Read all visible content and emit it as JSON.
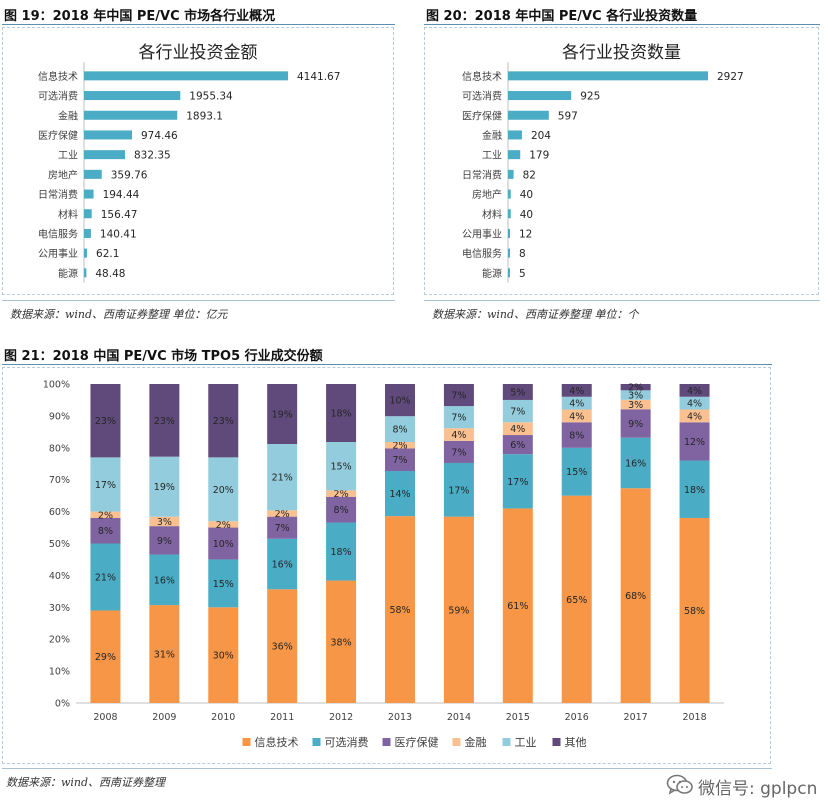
{
  "figure19": {
    "caption": "图 19：2018 年中国 PE/VC 市场各行业概况",
    "source": "数据来源：wind、西南证券整理 单位：亿元",
    "chart_data": {
      "type": "bar",
      "orientation": "horizontal",
      "title": "各行业投资金额",
      "categories": [
        "信息技术",
        "可选消费",
        "金融",
        "医疗保健",
        "工业",
        "房地产",
        "日常消费",
        "材料",
        "电信服务",
        "公用事业",
        "能源"
      ],
      "values": [
        4141.67,
        1955.34,
        1893.1,
        974.46,
        832.35,
        359.76,
        194.44,
        156.47,
        140.41,
        62.1,
        48.48
      ],
      "value_labels": [
        "4141.67",
        "1955.34",
        "1893.1",
        "974.46",
        "832.35",
        "359.76",
        "194.44",
        "156.47",
        "140.41",
        "62.1",
        "48.48"
      ],
      "color": "#4bacc6",
      "grid": false,
      "legend": "none"
    }
  },
  "figure20": {
    "caption": "图 20：2018 年中国 PE/VC 各行业投资数量",
    "source": "数据来源：wind、西南证券整理 单位：个",
    "chart_data": {
      "type": "bar",
      "orientation": "horizontal",
      "title": "各行业投资数量",
      "categories": [
        "信息技术",
        "可选消费",
        "医疗保健",
        "金融",
        "工业",
        "日常消费",
        "房地产",
        "材料",
        "公用事业",
        "电信服务",
        "能源"
      ],
      "values": [
        2927,
        925,
        597,
        204,
        179,
        82,
        40,
        40,
        12,
        8,
        5
      ],
      "value_labels": [
        "2927",
        "925",
        "597",
        "204",
        "179",
        "82",
        "40",
        "40",
        "12",
        "8",
        "5"
      ],
      "color": "#4bacc6",
      "grid": false,
      "legend": "none"
    }
  },
  "figure21": {
    "caption": "图 21：2018 中国 PE/VC 市场 TPO5 行业成交份额",
    "source": "数据来源：wind、西南证券整理",
    "chart_data": {
      "type": "bar",
      "stacked": "percent",
      "categories": [
        "2008",
        "2009",
        "2010",
        "2011",
        "2012",
        "2013",
        "2014",
        "2015",
        "2016",
        "2017",
        "2018"
      ],
      "y_ticks": [
        "0%",
        "10%",
        "20%",
        "30%",
        "40%",
        "50%",
        "60%",
        "70%",
        "80%",
        "90%",
        "100%"
      ],
      "ylim": [
        0,
        100
      ],
      "grid": false,
      "legend": "bottom",
      "series": [
        {
          "name": "信息技术",
          "color": "#f79646",
          "values": [
            29,
            31,
            30,
            36,
            38,
            58,
            59,
            61,
            65,
            68,
            58
          ],
          "labels": [
            "29%",
            "31%",
            "30%",
            "36%",
            "38%",
            "58%",
            "59%",
            "61%",
            "65%",
            "68%",
            "58%"
          ]
        },
        {
          "name": "可选消费",
          "color": "#4bacc6",
          "values": [
            21,
            16,
            15,
            16,
            18,
            14,
            17,
            17,
            15,
            16,
            18
          ],
          "labels": [
            "21%",
            "16%",
            "15%",
            "16%",
            "18%",
            "14%",
            "17%",
            "17%",
            "15%",
            "16%",
            "18%"
          ]
        },
        {
          "name": "医疗保健",
          "color": "#8064a2",
          "values": [
            8,
            9,
            10,
            7,
            8,
            7,
            7,
            6,
            8,
            9,
            12
          ],
          "labels": [
            "8%",
            "9%",
            "10%",
            "7%",
            "8%",
            "7%",
            "7%",
            "6%",
            "8%",
            "9%",
            "12%"
          ]
        },
        {
          "name": "金融",
          "color": "#fac090",
          "values": [
            2,
            3,
            2,
            2,
            2,
            2,
            4,
            4,
            4,
            3,
            4
          ],
          "labels": [
            "2%",
            "3%",
            "2%",
            "2%",
            "2%",
            "2%",
            "4%",
            "4%",
            "4%",
            "3%",
            "4%"
          ]
        },
        {
          "name": "工业",
          "color": "#93cddd",
          "values": [
            17,
            19,
            20,
            21,
            15,
            8,
            7,
            7,
            4,
            3,
            4
          ],
          "labels": [
            "17%",
            "19%",
            "20%",
            "21%",
            "15%",
            "8%",
            "7%",
            "7%",
            "4%",
            "3%",
            "4%"
          ]
        },
        {
          "name": "其他",
          "color": "#604a7b",
          "values": [
            23,
            23,
            23,
            19,
            18,
            10,
            7,
            5,
            4,
            2,
            4
          ],
          "labels": [
            "23%",
            "23%",
            "23%",
            "19%",
            "18%",
            "10%",
            "7%",
            "5%",
            "4%",
            "2%",
            "4%"
          ]
        }
      ]
    }
  },
  "watermark": {
    "text": "微信号: gplpcn",
    "icon": "wechat-icon"
  }
}
